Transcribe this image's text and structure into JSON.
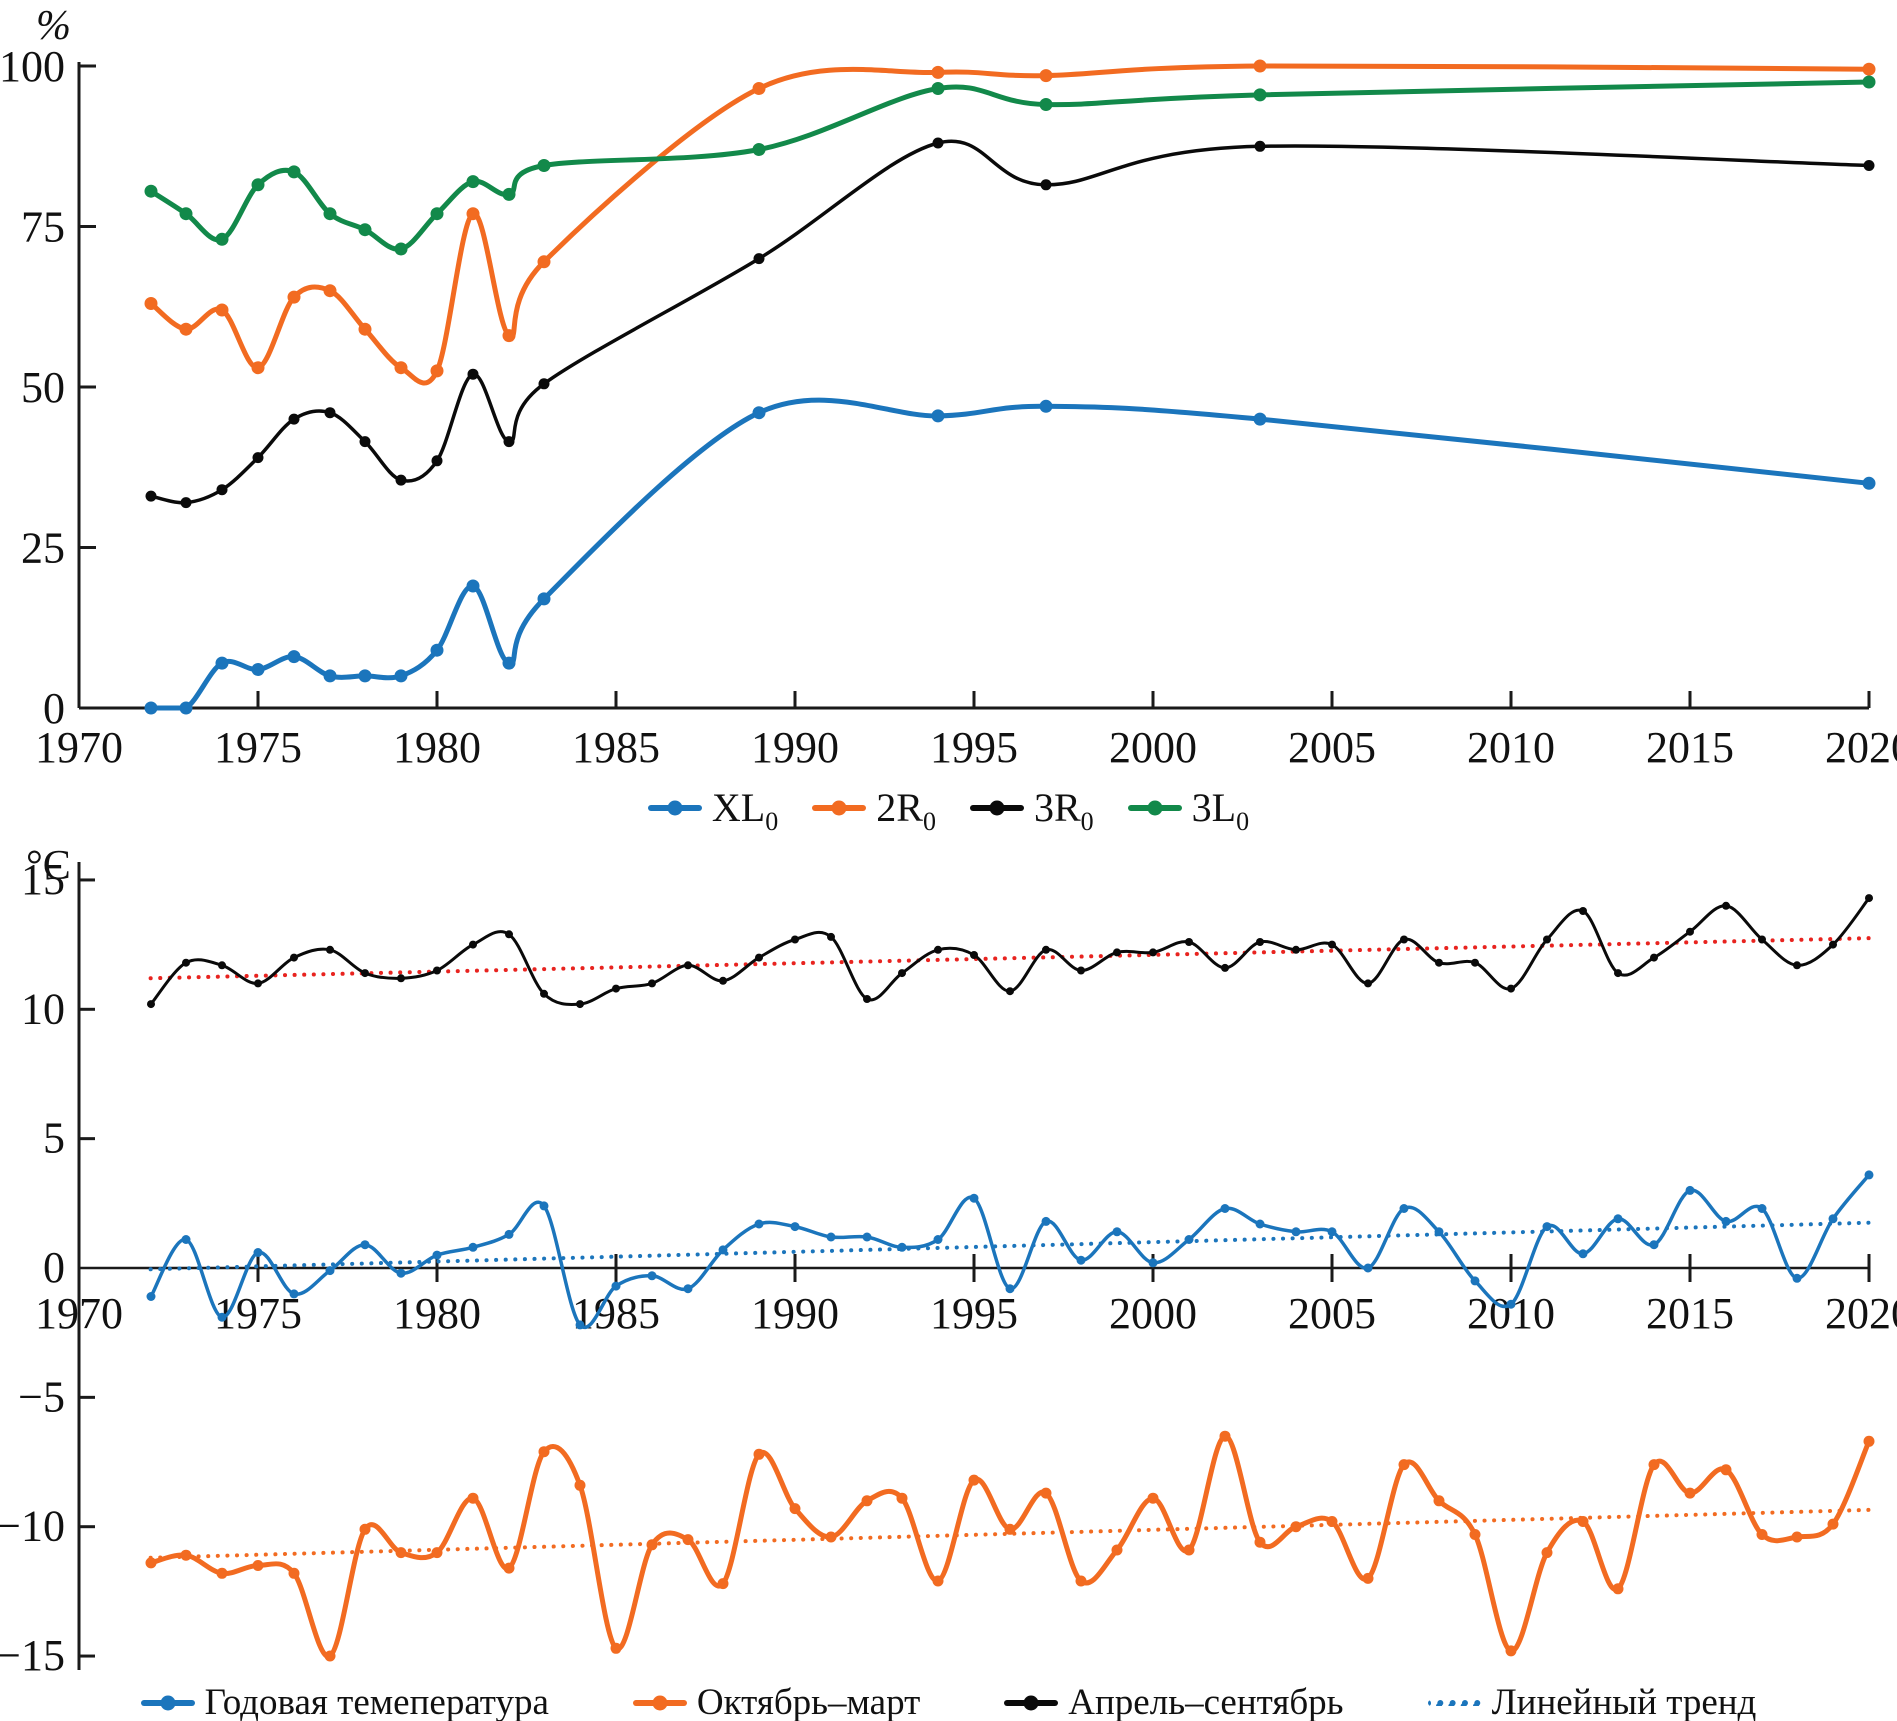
{
  "figure": {
    "top_unit": "%",
    "bottom_unit": "°C"
  },
  "colors": {
    "blue": "#1b75bc",
    "orange": "#f26b21",
    "green": "#12894a",
    "black": "#0a0a0a",
    "red_trend": "#e8231f",
    "axis": "#1a1a1a"
  },
  "top_legend": [
    {
      "label": "XL",
      "sub": "0",
      "color": "#1b75bc"
    },
    {
      "label": "2R",
      "sub": "0",
      "color": "#f26b21"
    },
    {
      "label": "3R",
      "sub": "0",
      "color": "#0a0a0a"
    },
    {
      "label": "3L",
      "sub": "0",
      "color": "#12894a"
    }
  ],
  "bottom_legend": [
    {
      "label": "Годовая темепература",
      "color": "#1b75bc",
      "style": "line-dot"
    },
    {
      "label": "Октябрь–март",
      "color": "#f26b21",
      "style": "line-dot"
    },
    {
      "label": "Апрель–сентябрь",
      "color": "#0a0a0a",
      "style": "line-dot"
    },
    {
      "label": "Линейный тренд",
      "color": "#1b75bc",
      "style": "dotted"
    }
  ],
  "chart_data": [
    {
      "type": "line",
      "title": "",
      "ylabel": "%",
      "xlabel": "",
      "grid": false,
      "legend_position": "bottom-center",
      "xlim": [
        1970,
        2020
      ],
      "ylim": [
        0,
        100
      ],
      "xticks": [
        1970,
        1975,
        1980,
        1985,
        1990,
        1995,
        2000,
        2005,
        2010,
        2015,
        2020
      ],
      "yticks": [
        0,
        25,
        50,
        75,
        100
      ],
      "x": [
        1972,
        1973,
        1974,
        1975,
        1976,
        1977,
        1978,
        1979,
        1980,
        1981,
        1982,
        1983,
        1989,
        1994,
        1997,
        2003,
        2020
      ],
      "series": [
        {
          "name": "XL0",
          "color": "#1b75bc",
          "width": 5,
          "marker": 6.5,
          "values": [
            0,
            0,
            7,
            6,
            8,
            5,
            5,
            5,
            9,
            19,
            7,
            17,
            46,
            45.5,
            47,
            45,
            35
          ]
        },
        {
          "name": "2R0",
          "color": "#f26b21",
          "width": 5,
          "marker": 6.5,
          "values": [
            63,
            59,
            62,
            53,
            64,
            65,
            59,
            53,
            52.5,
            77,
            58,
            69.5,
            96.5,
            99,
            98.5,
            100,
            99.5
          ]
        },
        {
          "name": "3R0",
          "color": "#0a0a0a",
          "width": 3.5,
          "marker": 5.5,
          "values": [
            33,
            32,
            34,
            39,
            45,
            46,
            41.5,
            35.5,
            38.5,
            52,
            41.5,
            50.5,
            70,
            88,
            81.5,
            87.5,
            84.5
          ]
        },
        {
          "name": "3L0",
          "color": "#12894a",
          "width": 5,
          "marker": 6.5,
          "values": [
            80.5,
            77,
            73,
            81.5,
            83.5,
            77,
            74.5,
            71.5,
            77,
            82,
            80,
            84.5,
            87,
            96.5,
            94,
            95.5,
            97.5
          ]
        }
      ]
    },
    {
      "type": "line",
      "title": "",
      "ylabel": "°C",
      "xlabel": "",
      "grid": false,
      "legend_position": "bottom-center",
      "xlim": [
        1970,
        2020
      ],
      "ylim": [
        -15,
        15
      ],
      "xticks": [
        1970,
        1975,
        1980,
        1985,
        1990,
        1995,
        2000,
        2005,
        2010,
        2015,
        2020
      ],
      "yticks": [
        15,
        10,
        5,
        0,
        -5,
        -10,
        -15
      ],
      "x": [
        1972,
        1973,
        1974,
        1975,
        1976,
        1977,
        1978,
        1979,
        1980,
        1981,
        1982,
        1983,
        1984,
        1985,
        1986,
        1987,
        1988,
        1989,
        1990,
        1991,
        1992,
        1993,
        1994,
        1995,
        1996,
        1997,
        1998,
        1999,
        2000,
        2001,
        2002,
        2003,
        2004,
        2005,
        2006,
        2007,
        2008,
        2009,
        2010,
        2011,
        2012,
        2013,
        2014,
        2015,
        2016,
        2017,
        2018,
        2019,
        2020
      ],
      "series": [
        {
          "name": "Годовая темепература",
          "color": "#1b75bc",
          "width": 3.5,
          "marker": 4.5,
          "values": [
            -1.1,
            1.1,
            -1.9,
            0.6,
            -1.0,
            -0.1,
            0.9,
            -0.2,
            0.5,
            0.8,
            1.3,
            2.4,
            -2.2,
            -0.7,
            -0.3,
            -0.8,
            0.7,
            1.7,
            1.6,
            1.2,
            1.2,
            0.8,
            1.1,
            2.7,
            -0.8,
            1.8,
            0.3,
            1.4,
            0.2,
            1.1,
            2.3,
            1.7,
            1.4,
            1.4,
            0.0,
            2.3,
            1.4,
            -0.5,
            -1.4,
            1.6,
            0.55,
            1.9,
            0.9,
            3.0,
            1.8,
            2.3,
            -0.4,
            1.9,
            3.6
          ]
        },
        {
          "name": "Октябрь–март",
          "color": "#f26b21",
          "width": 5,
          "marker": 5.5,
          "values": [
            -11.4,
            -11.1,
            -11.8,
            -11.5,
            -11.8,
            -15.0,
            -10.1,
            -11.0,
            -11.0,
            -8.9,
            -11.6,
            -7.1,
            -8.4,
            -14.7,
            -10.7,
            -10.5,
            -12.2,
            -7.2,
            -9.3,
            -10.4,
            -9.0,
            -8.9,
            -12.1,
            -8.2,
            -10.1,
            -8.7,
            -12.1,
            -10.9,
            -8.9,
            -10.9,
            -6.5,
            -10.6,
            -10.0,
            -9.8,
            -12.0,
            -7.6,
            -9.0,
            -10.3,
            -14.8,
            -11.0,
            -9.8,
            -12.4,
            -7.6,
            -8.7,
            -7.8,
            -10.3,
            -10.4,
            -9.9,
            -6.7
          ]
        },
        {
          "name": "Апрель–сентябрь",
          "color": "#0a0a0a",
          "width": 3,
          "marker": 4,
          "values": [
            10.2,
            11.8,
            11.7,
            11.0,
            12.0,
            12.3,
            11.4,
            11.2,
            11.5,
            12.5,
            12.9,
            10.6,
            10.2,
            10.8,
            11.0,
            11.7,
            11.1,
            12.0,
            12.7,
            12.8,
            10.4,
            11.4,
            12.3,
            12.1,
            10.7,
            12.3,
            11.5,
            12.2,
            12.2,
            12.6,
            11.6,
            12.6,
            12.3,
            12.5,
            11.0,
            12.7,
            11.8,
            11.8,
            10.8,
            12.7,
            13.8,
            11.4,
            12.0,
            13.0,
            14.0,
            12.7,
            11.7,
            12.5,
            14.3
          ]
        }
      ],
      "trends": [
        {
          "name": "Линейный тренд (Апрель–сентябрь)",
          "color": "#e8231f",
          "x": [
            1972,
            2020
          ],
          "values": [
            11.2,
            12.75
          ]
        },
        {
          "name": "Линейный тренд (Годовая)",
          "color": "#1b75bc",
          "x": [
            1972,
            2020
          ],
          "values": [
            -0.05,
            1.75
          ]
        },
        {
          "name": "Линейный тренд (Октябрь–март)",
          "color": "#f26b21",
          "x": [
            1972,
            2020
          ],
          "values": [
            -11.2,
            -9.35
          ]
        }
      ]
    }
  ]
}
